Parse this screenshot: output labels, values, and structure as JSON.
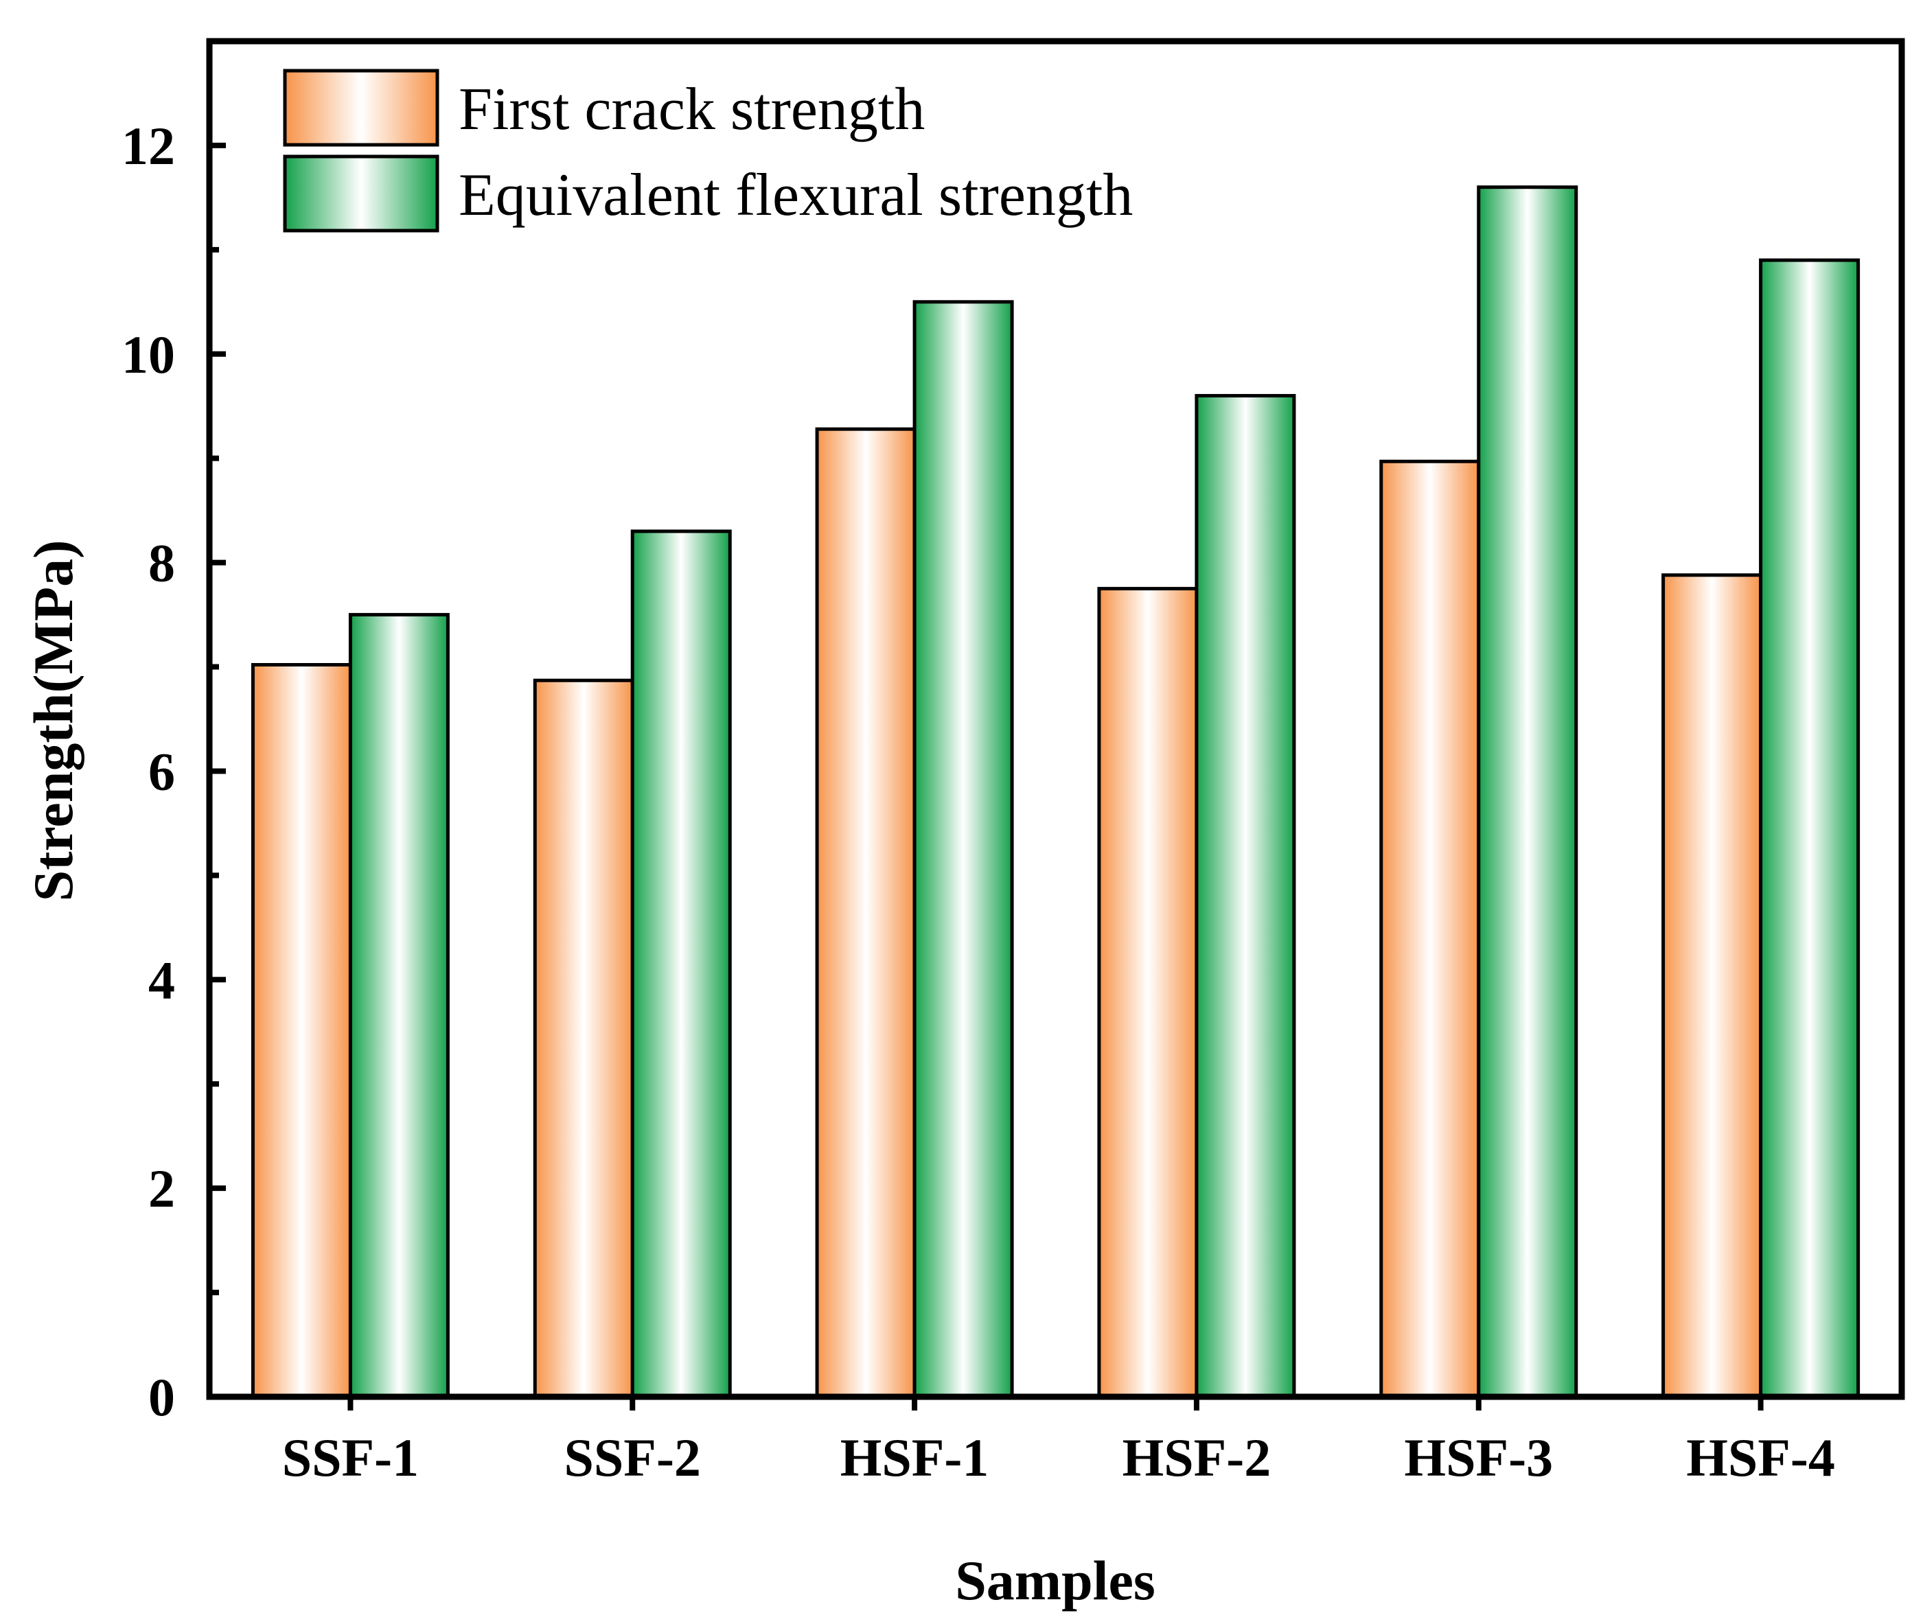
{
  "chart_data": {
    "type": "bar",
    "title": "",
    "xlabel": "Samples",
    "ylabel": "Strength(MPa)",
    "categories": [
      "SSF-1",
      "SSF-2",
      "HSF-1",
      "HSF-2",
      "HSF-3",
      "HSF-4"
    ],
    "series": [
      {
        "name": "First crack strength",
        "values": [
          7.02,
          6.87,
          9.28,
          7.75,
          8.97,
          7.88
        ],
        "color": "#f7944a"
      },
      {
        "name": "Equivalent flexural strength",
        "values": [
          7.5,
          8.3,
          10.5,
          9.6,
          11.6,
          10.9
        ],
        "color": "#14a14b"
      }
    ],
    "ylim": [
      0,
      13
    ],
    "yticks": [
      0,
      2,
      4,
      6,
      8,
      10,
      12
    ],
    "ytick_labels": [
      "0",
      "2",
      "4",
      "6",
      "8",
      "10",
      "12"
    ],
    "minor_ytick_step": 1,
    "grid": false,
    "legend_position": "top-left"
  }
}
